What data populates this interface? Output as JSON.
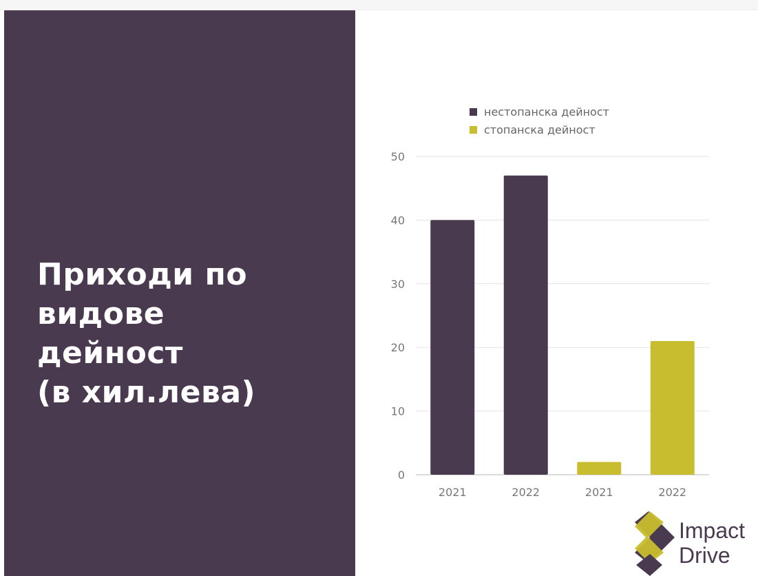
{
  "slide": {
    "title": "Приходи  по\nвидове\nдейност\n(в хил.лева)"
  },
  "chart_data": {
    "type": "bar",
    "categories": [
      "2021",
      "2022",
      "2021",
      "2022"
    ],
    "series": [
      {
        "name": "нестопанска дейност",
        "color": "#4a3a50",
        "values": [
          40,
          47,
          null,
          null
        ]
      },
      {
        "name": "стопанска дейност",
        "color": "#c8bd2e",
        "values": [
          null,
          null,
          2,
          21
        ]
      }
    ],
    "title": "",
    "xlabel": "",
    "ylabel": "",
    "ylim": [
      0,
      50
    ],
    "yticks": [
      0,
      10,
      20,
      30,
      40,
      50
    ],
    "grid": true,
    "legend": "top-left"
  },
  "logo": {
    "line1": "Impact",
    "line2": "Drive",
    "colors": {
      "dark": "#4a3a50",
      "accent": "#c8bd2e"
    }
  }
}
